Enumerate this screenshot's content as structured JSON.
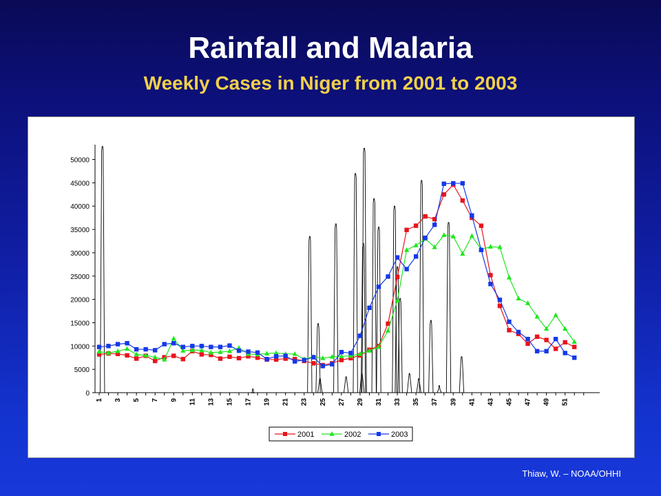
{
  "slide": {
    "title": "Rainfall and Malaria",
    "subtitle": "Weekly Cases in Niger from 2001 to 2003",
    "credit": "Thiaw, W. – NOAA/OHHI"
  },
  "colors": {
    "background": "#1020a8",
    "title": "#ffffff",
    "subtitle": "#f2d04a",
    "series_2001": "#e8141c",
    "series_2002": "#1ee81e",
    "series_2003": "#1438e8",
    "rainfall": "#000000"
  },
  "chart_data": {
    "type": "line",
    "title": "",
    "xlabel": "",
    "ylabel": "",
    "ylim": [
      0,
      52000
    ],
    "yticks": [
      0,
      5000,
      10000,
      15000,
      20000,
      25000,
      30000,
      35000,
      40000,
      45000,
      50000
    ],
    "xtick_labels": [
      "1",
      "3",
      "5",
      "7",
      "9",
      "11",
      "13",
      "15",
      "17",
      "19",
      "21",
      "23",
      "25",
      "27",
      "29",
      "31",
      "33",
      "35",
      "37",
      "39",
      "41",
      "43",
      "45",
      "47",
      "49",
      "51"
    ],
    "x": [
      1,
      2,
      3,
      4,
      5,
      6,
      7,
      8,
      9,
      10,
      11,
      12,
      13,
      14,
      15,
      16,
      17,
      18,
      19,
      20,
      21,
      22,
      23,
      24,
      25,
      26,
      27,
      28,
      29,
      30,
      31,
      32,
      33,
      34,
      35,
      36,
      37,
      38,
      39,
      40,
      41,
      42,
      43,
      44,
      45,
      46,
      47,
      48,
      49,
      50,
      51,
      52,
      53
    ],
    "legend_position": "bottom",
    "grid": false,
    "series": [
      {
        "name": "2001",
        "marker": "square",
        "values": [
          8200,
          8400,
          8300,
          8000,
          7300,
          7900,
          6800,
          7600,
          7900,
          7200,
          8900,
          8200,
          8100,
          7300,
          7700,
          7400,
          7800,
          7500,
          7100,
          7100,
          7300,
          7200,
          6800,
          6300,
          5900,
          6300,
          7000,
          7400,
          8000,
          9200,
          10000,
          14800,
          24800,
          34900,
          35800,
          37800,
          37200,
          42500,
          44600,
          41200,
          37500,
          35800,
          25200,
          18600,
          13400,
          12600,
          10500,
          12000,
          11300,
          9400,
          10800,
          9800,
          null
        ]
      },
      {
        "name": "2002",
        "marker": "triangle",
        "values": [
          8800,
          8500,
          8900,
          9400,
          8200,
          8000,
          7600,
          7100,
          11600,
          9000,
          9100,
          9100,
          8600,
          8700,
          8900,
          9600,
          8300,
          8200,
          8400,
          8500,
          8300,
          8300,
          7200,
          7700,
          7400,
          7700,
          7800,
          7900,
          8300,
          9000,
          9800,
          13300,
          19800,
          30600,
          31600,
          33000,
          31200,
          33800,
          33500,
          29800,
          33600,
          30700,
          31300,
          31200,
          24700,
          20200,
          19200,
          16300,
          13700,
          16600,
          13700,
          10900,
          null
        ]
      },
      {
        "name": "2003",
        "marker": "square",
        "values": [
          9800,
          10000,
          10400,
          10600,
          9300,
          9300,
          9100,
          10400,
          10600,
          9800,
          10000,
          10000,
          9800,
          9800,
          10100,
          9000,
          8800,
          8600,
          7200,
          7800,
          7900,
          6700,
          7000,
          7600,
          5700,
          6100,
          8700,
          8500,
          12200,
          18200,
          22700,
          24900,
          29000,
          26500,
          29200,
          33200,
          36000,
          44800,
          44900,
          44900,
          38000,
          30600,
          23300,
          19900,
          15200,
          13000,
          11500,
          8900,
          8900,
          11500,
          8500,
          7500,
          null
        ]
      },
      {
        "name": "",
        "type": "rainfall-spikes",
        "color": "#000000",
        "spikes": [
          [
            0.35,
            52800
          ],
          [
            16.5,
            800
          ],
          [
            22.6,
            33500
          ],
          [
            23.5,
            14800
          ],
          [
            23.7,
            3000
          ],
          [
            25.4,
            36200
          ],
          [
            26.5,
            3400
          ],
          [
            27.5,
            47000
          ],
          [
            28.2,
            4000
          ],
          [
            28.35,
            32000
          ],
          [
            28.45,
            52400
          ],
          [
            29.5,
            41600
          ],
          [
            30.0,
            35500
          ],
          [
            31.7,
            40000
          ],
          [
            32.0,
            27000
          ],
          [
            32.3,
            20200
          ],
          [
            33.3,
            4100
          ],
          [
            34.3,
            3000
          ],
          [
            34.6,
            45500
          ],
          [
            35.6,
            15500
          ],
          [
            36.5,
            1500
          ],
          [
            37.5,
            36500
          ],
          [
            38.9,
            7700
          ]
        ]
      }
    ]
  }
}
